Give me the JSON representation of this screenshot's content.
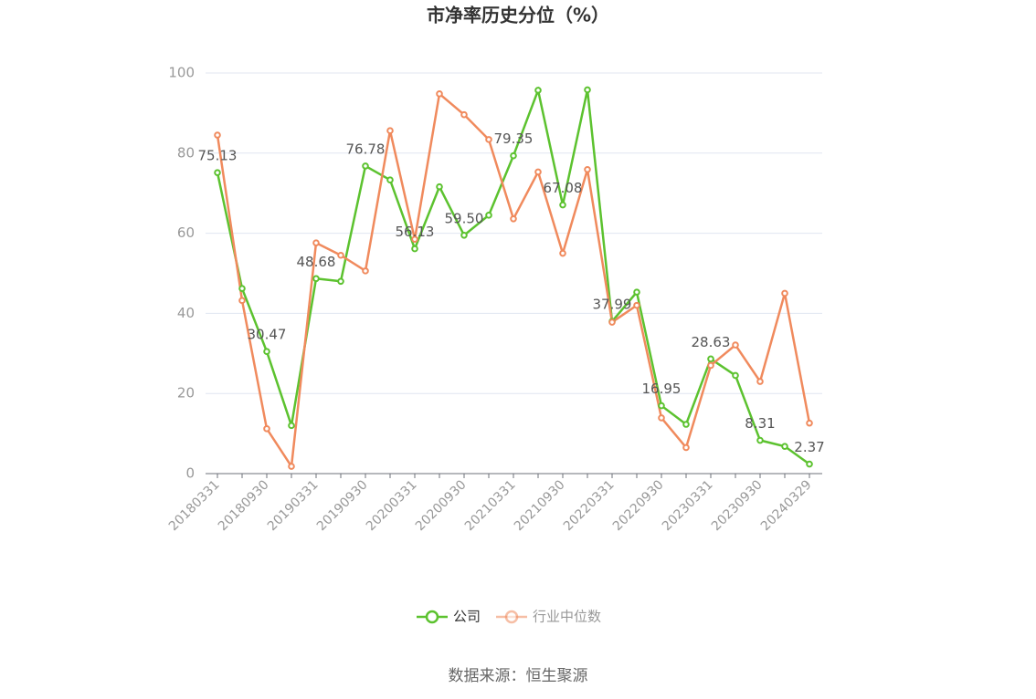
{
  "chart_data": {
    "type": "line",
    "title": "市净率历史分位（%）",
    "categories": [
      "20180331",
      null,
      "20180930",
      null,
      "20190331",
      null,
      "20190930",
      null,
      "20200331",
      null,
      "20200930",
      null,
      "20210331",
      null,
      "20210930",
      null,
      "20220331",
      null,
      "20220930",
      null,
      "20230331",
      null,
      "20230930",
      null,
      "20240329"
    ],
    "series": [
      {
        "name": "公司",
        "color": "#5cc22f",
        "values": [
          75.13,
          46.2,
          30.47,
          12.0,
          48.68,
          48.0,
          76.78,
          73.3,
          56.13,
          71.6,
          59.5,
          64.5,
          79.35,
          95.7,
          67.08,
          95.8,
          37.99,
          45.3,
          16.95,
          12.3,
          28.63,
          24.5,
          8.31,
          6.8,
          2.37
        ],
        "value_labels": [
          "75.13",
          null,
          "30.47",
          null,
          "48.68",
          null,
          "76.78",
          null,
          "56.13",
          null,
          "59.50",
          null,
          "79.35",
          null,
          "67.08",
          null,
          "37.99",
          null,
          "16.95",
          null,
          "28.63",
          null,
          "8.31",
          null,
          "2.37"
        ]
      },
      {
        "name": "行业中位数",
        "color": "#f08a5d",
        "values": [
          84.5,
          43.2,
          11.2,
          1.8,
          57.6,
          54.5,
          50.6,
          85.6,
          58.5,
          94.8,
          89.6,
          83.4,
          63.6,
          75.3,
          55.0,
          75.9,
          37.8,
          42.0,
          13.9,
          6.5,
          27.0,
          32.1,
          23.0,
          45.0,
          12.6
        ]
      }
    ],
    "ylim": [
      0,
      100
    ],
    "yticks": [
      0,
      20,
      40,
      60,
      80,
      100
    ],
    "grid": true,
    "legend": "bottom",
    "source": "数据来源：恒生聚源"
  }
}
